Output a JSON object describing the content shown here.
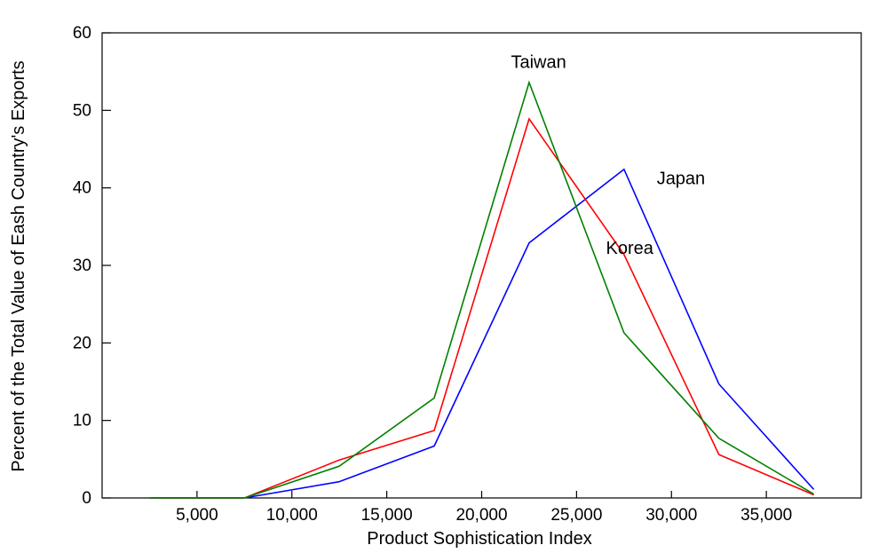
{
  "chart_data": {
    "type": "line",
    "xlabel": "Product Sophistication Index",
    "ylabel": "Percent of the Total Value of Eash Country's Exports",
    "xlim": [
      0,
      40000
    ],
    "ylim": [
      0,
      60
    ],
    "xticks": [
      5000,
      10000,
      15000,
      20000,
      25000,
      30000,
      35000
    ],
    "xtick_labels": [
      "5,000",
      "10,000",
      "15,000",
      "20,000",
      "25,000",
      "30,000",
      "35,000"
    ],
    "yticks": [
      0,
      10,
      20,
      30,
      40,
      50,
      60
    ],
    "ytick_labels": [
      "0",
      "10",
      "20",
      "30",
      "40",
      "50",
      "60"
    ],
    "x": [
      2500,
      7500,
      12500,
      17500,
      22500,
      27500,
      32500,
      37500
    ],
    "series": [
      {
        "name": "Japan",
        "color": "#0000ff",
        "values": [
          0,
          0,
          2.1,
          6.7,
          32.9,
          42.4,
          14.7,
          1.1
        ]
      },
      {
        "name": "Korea",
        "color": "#ff0000",
        "values": [
          0,
          0,
          4.9,
          8.7,
          48.9,
          31.4,
          5.6,
          0.4
        ]
      },
      {
        "name": "Taiwan",
        "color": "#008000",
        "values": [
          0,
          0,
          4.1,
          12.9,
          53.6,
          21.3,
          7.7,
          0.5
        ]
      }
    ],
    "annotations": [
      {
        "text": "Taiwan",
        "x": 23000,
        "y": 55.5
      },
      {
        "text": "Japan",
        "x": 30500,
        "y": 40.5
      },
      {
        "text": "Korea",
        "x": 27800,
        "y": 31.5
      }
    ],
    "grid": false
  }
}
